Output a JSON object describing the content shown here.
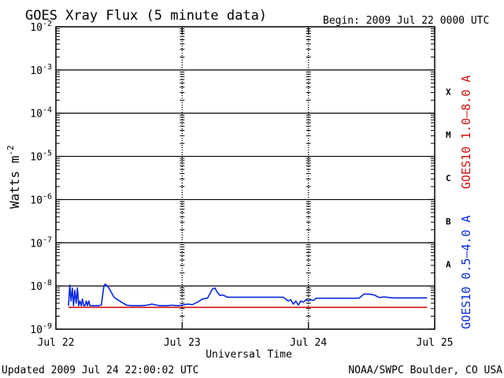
{
  "chart_data": {
    "type": "line",
    "title": "GOES Xray Flux (5 minute data)",
    "begin_label": "Begin:  2009 Jul 22 0000 UTC",
    "xlabel": "Universal Time",
    "ylabel": "Watts m",
    "ylabel_superscript": "-2",
    "x_ticks": [
      "Jul 22",
      "Jul 23",
      "Jul 24",
      "Jul 25"
    ],
    "xlim_days": [
      0,
      3
    ],
    "y_scale": "log",
    "ylim": [
      1e-09,
      0.01
    ],
    "y_tick_exponents": [
      -9,
      -8,
      -7,
      -6,
      -5,
      -4,
      -3,
      -2
    ],
    "y_tick_base": "10",
    "grid": true,
    "flare_classes": [
      {
        "label": "A",
        "exp": -8
      },
      {
        "label": "B",
        "exp": -7
      },
      {
        "label": "C",
        "exp": -6
      },
      {
        "label": "M",
        "exp": -5
      },
      {
        "label": "X",
        "exp": -4
      }
    ],
    "series": [
      {
        "name": "GOES10 1.0–8.0 A",
        "color": "#d01010",
        "x_days": [
          0.1,
          2.94
        ],
        "y": [
          3.2e-09,
          3.2e-09
        ]
      },
      {
        "name": "GOES10 0.5–4.0 A",
        "color": "#0828e0",
        "x_days": [
          0.1,
          0.11,
          0.12,
          0.13,
          0.14,
          0.15,
          0.16,
          0.17,
          0.18,
          0.19,
          0.2,
          0.21,
          0.22,
          0.23,
          0.24,
          0.25,
          0.26,
          0.27,
          0.28,
          0.29,
          0.3,
          0.33,
          0.36,
          0.38,
          0.39,
          0.4,
          0.42,
          0.44,
          0.46,
          0.48,
          0.52,
          0.56,
          0.6,
          0.64,
          0.68,
          0.72,
          0.76,
          0.8,
          0.82,
          0.84,
          0.86,
          0.88,
          0.92,
          0.96,
          1.0,
          1.04,
          1.08,
          1.12,
          1.16,
          1.2,
          1.24,
          1.26,
          1.28,
          1.3,
          1.32,
          1.36,
          1.4,
          1.44,
          1.48,
          1.52,
          1.56,
          1.6,
          1.64,
          1.68,
          1.72,
          1.76,
          1.8,
          1.84,
          1.86,
          1.88,
          1.9,
          1.92,
          1.94,
          1.96,
          1.98,
          2.0,
          2.02,
          2.04,
          2.06,
          2.08,
          2.12,
          2.16,
          2.2,
          2.24,
          2.28,
          2.32,
          2.36,
          2.4,
          2.44,
          2.48,
          2.52,
          2.56,
          2.6,
          2.64,
          2.68,
          2.72,
          2.76,
          2.8,
          2.84,
          2.88,
          2.92,
          2.94
        ],
        "y": [
          3.5e-09,
          1.05e-08,
          4.5e-09,
          9e-09,
          3.5e-09,
          8e-09,
          4e-09,
          9e-09,
          3.5e-09,
          4.5e-09,
          3.5e-09,
          5e-09,
          3.5e-09,
          3.5e-09,
          4.5e-09,
          3.5e-09,
          4.5e-09,
          3.5e-09,
          3.5e-09,
          3.5e-09,
          3.5e-09,
          3.5e-09,
          3.6e-09,
          1e-08,
          1.1e-08,
          1.05e-08,
          9e-09,
          7e-09,
          5.5e-09,
          5e-09,
          4.2e-09,
          3.6e-09,
          3.5e-09,
          3.5e-09,
          3.5e-09,
          3.6e-09,
          3.8e-09,
          3.6e-09,
          3.5e-09,
          3.5e-09,
          3.5e-09,
          3.5e-09,
          3.6e-09,
          3.5e-09,
          3.6e-09,
          3.8e-09,
          3.7e-09,
          4.2e-09,
          5e-09,
          5.2e-09,
          8.5e-09,
          9e-09,
          7e-09,
          6e-09,
          6.2e-09,
          5.5e-09,
          5.5e-09,
          5.5e-09,
          5.5e-09,
          5.5e-09,
          5.5e-09,
          5.5e-09,
          5.5e-09,
          5.5e-09,
          5.5e-09,
          5.5e-09,
          5.5e-09,
          4.5e-09,
          4.8e-09,
          3.8e-09,
          4.5e-09,
          3.6e-09,
          4.5e-09,
          4.2e-09,
          4.8e-09,
          4.5e-09,
          4.8e-09,
          4.6e-09,
          5.2e-09,
          5.2e-09,
          5.2e-09,
          5.2e-09,
          5.2e-09,
          5.2e-09,
          5.2e-09,
          5.2e-09,
          5.2e-09,
          5.2e-09,
          6.5e-09,
          6.5e-09,
          6.2e-09,
          5.4e-09,
          5.6e-09,
          5.4e-09,
          5.3e-09,
          5.3e-09,
          5.3e-09,
          5.3e-09,
          5.3e-09,
          5.3e-09,
          5.3e-09,
          5.3e-09
        ]
      }
    ]
  },
  "footer": {
    "updated": "Updated 2009 Jul 24 22:00:02 UTC",
    "credit": "NOAA/SWPC Boulder, CO USA"
  }
}
